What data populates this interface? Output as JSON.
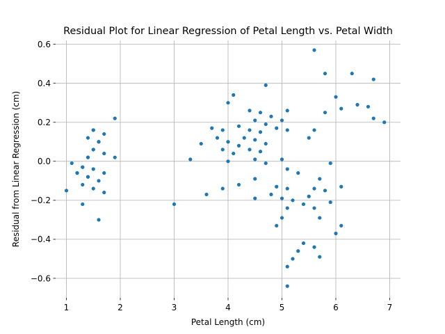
{
  "chart_data": {
    "type": "scatter",
    "title": "Residual Plot for Linear Regression of Petal Length vs. Petal Width",
    "xlabel": "Petal Length (cm)",
    "ylabel": "Residual from Linear Regression (cm)",
    "xlim": [
      0.8,
      7.2
    ],
    "ylim": [
      -0.7,
      0.62
    ],
    "xticks": [
      1,
      2,
      3,
      4,
      5,
      6,
      7
    ],
    "xtick_labels": [
      "1",
      "2",
      "3",
      "4",
      "5",
      "6",
      "7"
    ],
    "yticks": [
      -0.6,
      -0.4,
      -0.2,
      0.0,
      0.2,
      0.4,
      0.6
    ],
    "ytick_labels": [
      "−0.6",
      "−0.4",
      "−0.2",
      "0.0",
      "0.2",
      "0.4",
      "0.6"
    ],
    "grid": true,
    "color": "#1f77b4",
    "series": [
      {
        "x": [
          1.0,
          1.1,
          1.2,
          1.2,
          1.3,
          1.3,
          1.3,
          1.3,
          1.4,
          1.4,
          1.4,
          1.4,
          1.4,
          1.5,
          1.5,
          1.5,
          1.5,
          1.5,
          1.5,
          1.6,
          1.6,
          1.6,
          1.6,
          1.7,
          1.7,
          1.7,
          1.7,
          1.9,
          1.9,
          3.0,
          3.3,
          3.5,
          3.6,
          3.7,
          3.8,
          3.9,
          3.9,
          3.9,
          4.0,
          4.0,
          4.0,
          4.1,
          4.1,
          4.2,
          4.2,
          4.2,
          4.3,
          4.4,
          4.4,
          4.4,
          4.5,
          4.5,
          4.5,
          4.5,
          4.5,
          4.6,
          4.6,
          4.6,
          4.7,
          4.7,
          4.7,
          4.7,
          4.8,
          4.8,
          4.9,
          4.9,
          4.9,
          5.0,
          5.0,
          5.0,
          5.0,
          5.1,
          5.1,
          5.1,
          5.1,
          5.1,
          5.1,
          5.1,
          5.2,
          5.2,
          5.3,
          5.3,
          5.4,
          5.4,
          5.5,
          5.5,
          5.6,
          5.6,
          5.6,
          5.6,
          5.6,
          5.7,
          5.7,
          5.7,
          5.8,
          5.8,
          5.8,
          5.9,
          5.9,
          6.0,
          6.0,
          6.1,
          6.1,
          6.1,
          6.3,
          6.4,
          6.6,
          6.7,
          6.7,
          6.9
        ],
        "y": [
          -0.15,
          -0.01,
          -0.06,
          -0.06,
          -0.03,
          -0.03,
          -0.12,
          -0.22,
          0.12,
          0.02,
          0.02,
          -0.08,
          -0.08,
          0.16,
          0.16,
          0.06,
          0.06,
          -0.04,
          -0.14,
          0.1,
          0.1,
          -0.1,
          -0.3,
          0.14,
          0.04,
          -0.06,
          -0.16,
          0.22,
          0.02,
          -0.22,
          0.01,
          0.09,
          -0.17,
          0.17,
          0.12,
          0.16,
          0.06,
          -0.14,
          0.3,
          0.1,
          0.0,
          0.34,
          0.04,
          0.18,
          0.08,
          -0.12,
          0.12,
          0.26,
          0.16,
          0.06,
          0.21,
          0.11,
          0.01,
          -0.09,
          -0.19,
          0.25,
          0.15,
          0.05,
          0.39,
          0.19,
          0.09,
          -0.01,
          0.23,
          -0.17,
          0.17,
          -0.13,
          -0.33,
          0.21,
          0.01,
          -0.19,
          -0.29,
          0.26,
          0.16,
          -0.04,
          -0.14,
          -0.24,
          -0.54,
          -0.64,
          -0.2,
          -0.5,
          -0.06,
          -0.46,
          -0.22,
          -0.42,
          0.12,
          -0.18,
          0.57,
          0.16,
          -0.14,
          -0.24,
          -0.44,
          -0.09,
          -0.29,
          -0.49,
          0.45,
          0.25,
          -0.15,
          -0.01,
          -0.21,
          0.33,
          -0.37,
          0.27,
          -0.13,
          -0.33,
          0.45,
          0.29,
          0.28,
          0.42,
          0.22,
          0.2
        ]
      }
    ]
  }
}
